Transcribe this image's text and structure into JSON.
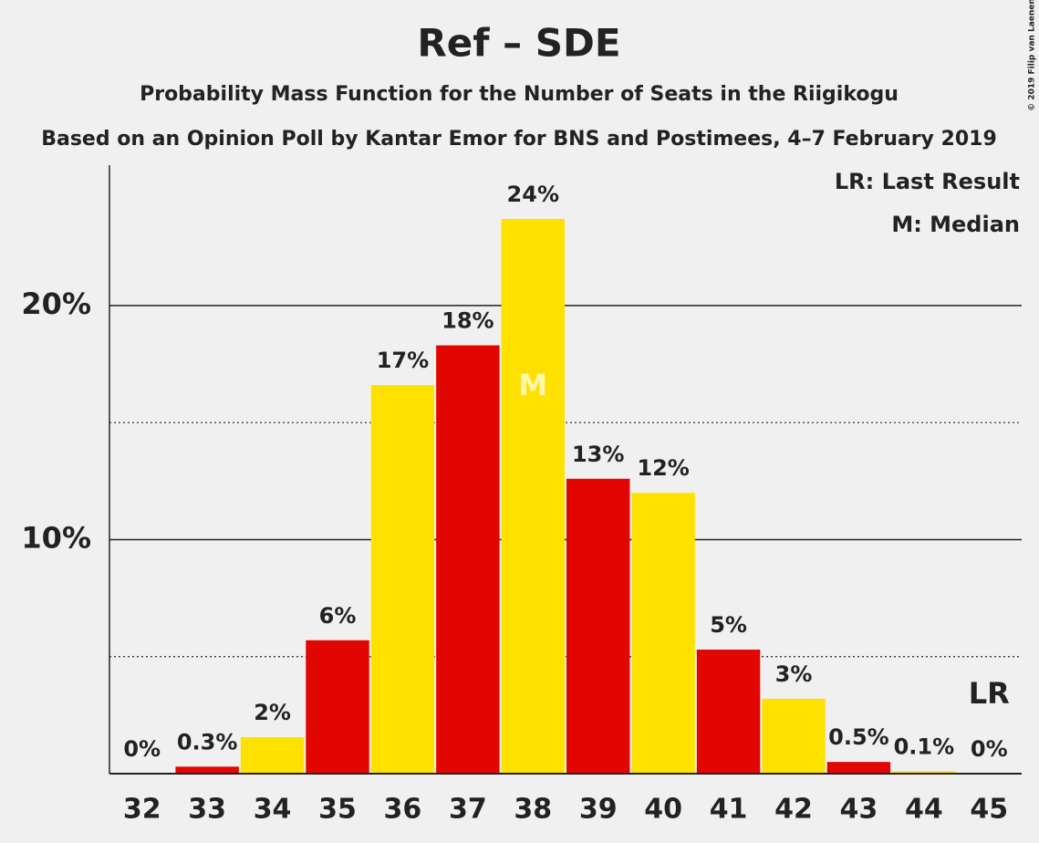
{
  "chart_data": {
    "type": "bar",
    "title": "Ref – SDE",
    "subtitle": "Probability Mass Function for the Number of Seats in the Riigikogu",
    "subtitle2": "Based on an Opinion Poll by Kantar Emor for BNS and Postimees, 4–7 February 2019",
    "copyright": "© 2019 Filip van Laenen",
    "legend": [
      "LR: Last Result",
      "M: Median"
    ],
    "categories": [
      "32",
      "33",
      "34",
      "35",
      "36",
      "37",
      "38",
      "39",
      "40",
      "41",
      "42",
      "43",
      "44",
      "45"
    ],
    "values": [
      0,
      0.3,
      1.56,
      5.7,
      16.6,
      18.3,
      23.7,
      12.6,
      12.0,
      5.3,
      3.2,
      0.5,
      0.1,
      0
    ],
    "value_labels": [
      "0%",
      "0.3%",
      "2%",
      "6%",
      "17%",
      "18%",
      "24%",
      "13%",
      "12%",
      "5%",
      "3%",
      "0.5%",
      "0.1%",
      "0%"
    ],
    "colors": [
      "#ffe100",
      "#e10600",
      "#ffe100",
      "#e10600",
      "#ffe100",
      "#e10600",
      "#ffe100",
      "#e10600",
      "#ffe100",
      "#e10600",
      "#ffe100",
      "#e10600",
      "#ffe100",
      "#e10600"
    ],
    "markers": [
      {
        "label": "M",
        "category": "38"
      },
      {
        "label": "LR",
        "category": "45"
      }
    ],
    "ylim": [
      0,
      26
    ],
    "yticks": [
      {
        "value": 10,
        "label": "10%"
      },
      {
        "value": 20,
        "label": "20%"
      }
    ],
    "minor_gridlines": [
      5,
      15
    ],
    "grid": true
  }
}
